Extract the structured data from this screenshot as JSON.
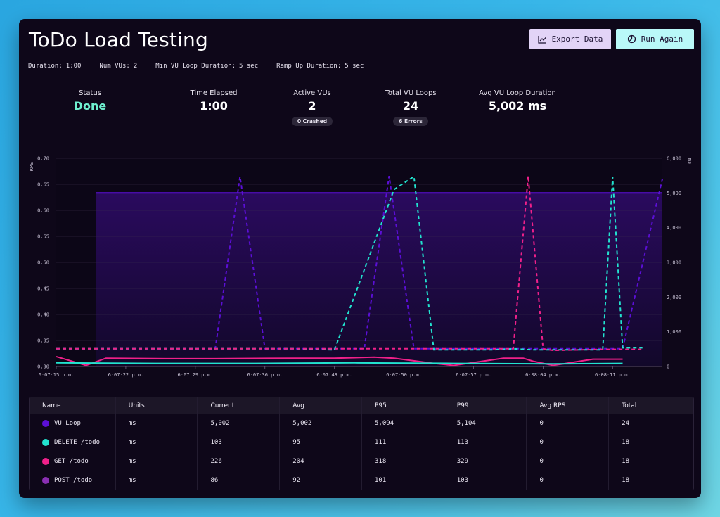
{
  "header": {
    "title": "ToDo Load Testing",
    "export_label": "Export Data",
    "run_label": "Run Again"
  },
  "meta": [
    {
      "label": "Duration:",
      "value": "1:00"
    },
    {
      "label": "Num VUs:",
      "value": "2"
    },
    {
      "label": "Min VU Loop Duration:",
      "value": "5 sec"
    },
    {
      "label": "Ramp Up Duration:",
      "value": "5 sec"
    }
  ],
  "stats": {
    "status": {
      "label": "Status",
      "value": "Done"
    },
    "elapsed": {
      "label": "Time Elapsed",
      "value": "1:00"
    },
    "active": {
      "label": "Active VUs",
      "value": "2",
      "badge": "0 Crashed"
    },
    "loops": {
      "label": "Total VU Loops",
      "value": "24",
      "badge": "6 Errors"
    },
    "avg": {
      "label": "Avg VU Loop Duration",
      "value": "5,002 ms"
    }
  },
  "colors": {
    "vu_loop": "#5b0fd6",
    "delete": "#22e3cf",
    "get": "#f0208a",
    "post": "#8a2fb3",
    "status_done": "#6ff0d0"
  },
  "chart_data": {
    "type": "line",
    "y_left": {
      "label": "RPS",
      "ticks": [
        "0.70",
        "0.65",
        "0.60",
        "0.55",
        "0.50",
        "0.45",
        "0.40",
        "0.35",
        "0.30"
      ],
      "range": [
        0.3,
        0.7
      ]
    },
    "y_right": {
      "label": "ms",
      "ticks": [
        "6,000",
        "5,000",
        "4,000",
        "3,000",
        "2,000",
        "1,000",
        "0"
      ],
      "range": [
        0,
        6000
      ]
    },
    "x_ticks": [
      "6:07:15 p.m.",
      "6:07:22 p.m.",
      "6:07:29 p.m.",
      "6:07:36 p.m.",
      "6:07:43 p.m.",
      "6:07:50 p.m.",
      "6:07:57 p.m.",
      "6:08:04 p.m.",
      "6:08:11 p.m."
    ],
    "x_range": [
      0,
      61
    ],
    "series": [
      {
        "name": "VU Loop",
        "kind": "area",
        "axis": "right",
        "x": [
          4,
          61
        ],
        "y": [
          5002,
          5002
        ]
      },
      {
        "name": "VU Loop",
        "kind": "dashed",
        "axis": "left",
        "x": [
          0,
          13,
          16,
          18.5,
          21,
          26,
          28,
          31,
          33.5,
          36,
          38,
          46,
          48,
          57,
          61
        ],
        "y": [
          0.334,
          0.334,
          0.334,
          0.665,
          0.334,
          0.334,
          0.334,
          0.334,
          0.666,
          0.334,
          0.334,
          0.334,
          0.334,
          0.334,
          0.66
        ]
      },
      {
        "name": "DELETE /todo",
        "kind": "dashed",
        "axis": "left",
        "x": [
          0,
          20,
          24,
          28,
          34,
          36,
          38,
          44,
          46,
          48,
          54,
          55,
          56,
          57,
          59
        ],
        "y": [
          0.334,
          0.334,
          0.334,
          0.332,
          0.64,
          0.665,
          0.332,
          0.332,
          0.334,
          0.332,
          0.332,
          0.332,
          0.664,
          0.336,
          0.336
        ]
      },
      {
        "name": "GET /todo",
        "kind": "dashed",
        "axis": "left",
        "x": [
          0,
          20,
          27,
          40,
          45,
          46,
          47.5,
          49,
          50,
          55,
          59
        ],
        "y": [
          0.334,
          0.334,
          0.334,
          0.334,
          0.334,
          0.334,
          0.666,
          0.334,
          0.331,
          0.333,
          0.333
        ]
      },
      {
        "name": "GET /todo",
        "kind": "solid",
        "axis": "left",
        "x": [
          0,
          3,
          5,
          11,
          16,
          24,
          28,
          32,
          34,
          38,
          40,
          45,
          47,
          48,
          50,
          54,
          57
        ],
        "y": [
          0.319,
          0.302,
          0.316,
          0.315,
          0.315,
          0.316,
          0.316,
          0.318,
          0.316,
          0.306,
          0.302,
          0.316,
          0.316,
          0.31,
          0.302,
          0.314,
          0.314
        ]
      },
      {
        "name": "DELETE /todo",
        "kind": "solid",
        "axis": "left",
        "x": [
          0,
          10,
          20,
          30,
          40,
          50,
          57
        ],
        "y": [
          0.307,
          0.306,
          0.306,
          0.307,
          0.306,
          0.305,
          0.306
        ]
      }
    ]
  },
  "table": {
    "headers": [
      "Name",
      "Units",
      "Current",
      "Avg",
      "P95",
      "P99",
      "Avg RPS",
      "Total"
    ],
    "rows": [
      {
        "name": "VU Loop",
        "color": "#5b0fd6",
        "units": "ms",
        "current": "5,002",
        "avg": "5,002",
        "p95": "5,094",
        "p99": "5,104",
        "rps": "0",
        "total": "24"
      },
      {
        "name": "DELETE /todo",
        "color": "#22e3cf",
        "units": "ms",
        "current": "103",
        "avg": "95",
        "p95": "111",
        "p99": "113",
        "rps": "0",
        "total": "18"
      },
      {
        "name": "GET /todo",
        "color": "#f0208a",
        "units": "ms",
        "current": "226",
        "avg": "204",
        "p95": "318",
        "p99": "329",
        "rps": "0",
        "total": "18"
      },
      {
        "name": "POST /todo",
        "color": "#8a2fb3",
        "units": "ms",
        "current": "86",
        "avg": "92",
        "p95": "101",
        "p99": "103",
        "rps": "0",
        "total": "18"
      }
    ]
  }
}
